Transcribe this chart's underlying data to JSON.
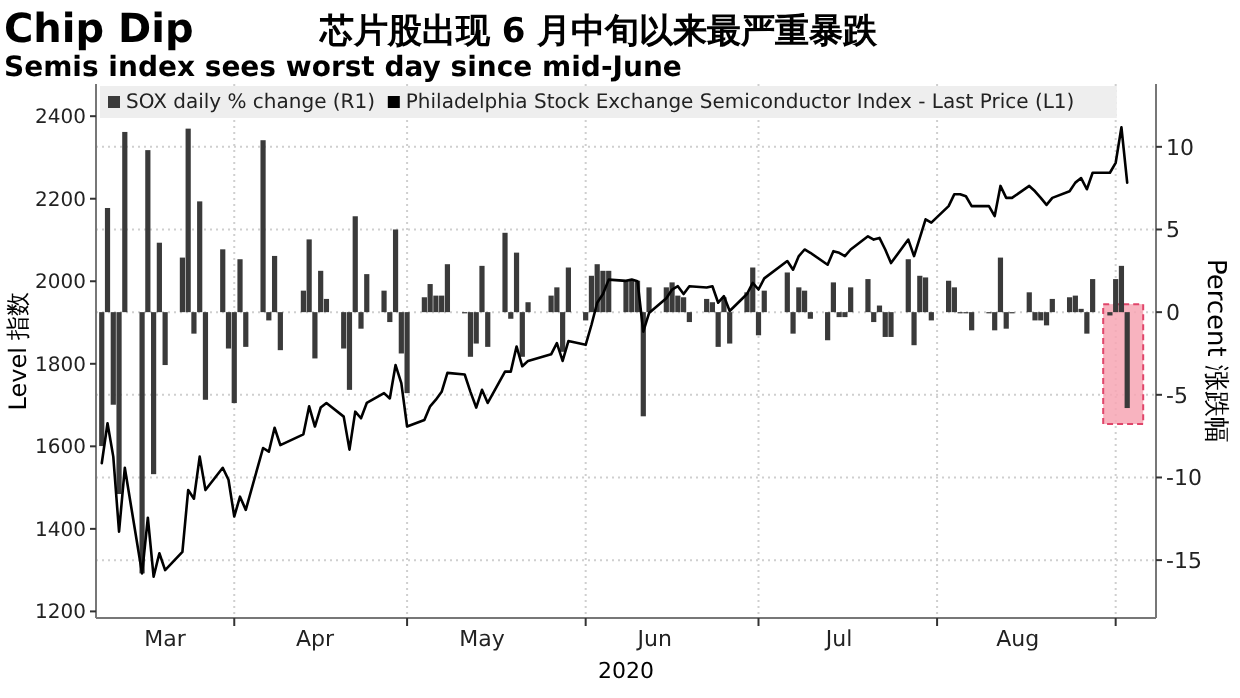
{
  "chart_data": {
    "type": "bar",
    "title": "Chip Dip",
    "subtitle": "Semis index sees worst day since mid-June",
    "annotations": [
      "芯片股出现 6 月中旬以来最严重暴跌"
    ],
    "xlabel": "2020",
    "ylabel": "Level 指数",
    "y2label": "Percent 涨跌幅",
    "x": [
      "2020-03-09",
      "2020-03-10",
      "2020-03-11",
      "2020-03-12",
      "2020-03-13",
      "2020-03-16",
      "2020-03-17",
      "2020-03-18",
      "2020-03-19",
      "2020-03-20",
      "2020-03-23",
      "2020-03-24",
      "2020-03-25",
      "2020-03-26",
      "2020-03-27",
      "2020-03-30",
      "2020-03-31",
      "2020-04-01",
      "2020-04-02",
      "2020-04-03",
      "2020-04-06",
      "2020-04-07",
      "2020-04-08",
      "2020-04-09",
      "2020-04-13",
      "2020-04-14",
      "2020-04-15",
      "2020-04-16",
      "2020-04-17",
      "2020-04-20",
      "2020-04-21",
      "2020-04-22",
      "2020-04-23",
      "2020-04-24",
      "2020-04-27",
      "2020-04-28",
      "2020-04-29",
      "2020-04-30",
      "2020-05-01",
      "2020-05-04",
      "2020-05-05",
      "2020-05-06",
      "2020-05-07",
      "2020-05-08",
      "2020-05-11",
      "2020-05-12",
      "2020-05-13",
      "2020-05-14",
      "2020-05-15",
      "2020-05-18",
      "2020-05-19",
      "2020-05-20",
      "2020-05-21",
      "2020-05-22",
      "2020-05-26",
      "2020-05-27",
      "2020-05-28",
      "2020-05-29",
      "2020-06-01",
      "2020-06-02",
      "2020-06-03",
      "2020-06-04",
      "2020-06-05",
      "2020-06-08",
      "2020-06-09",
      "2020-06-10",
      "2020-06-11",
      "2020-06-12",
      "2020-06-15",
      "2020-06-16",
      "2020-06-17",
      "2020-06-18",
      "2020-06-19",
      "2020-06-22",
      "2020-06-23",
      "2020-06-24",
      "2020-06-25",
      "2020-06-26",
      "2020-06-29",
      "2020-06-30",
      "2020-07-01",
      "2020-07-02",
      "2020-07-06",
      "2020-07-07",
      "2020-07-08",
      "2020-07-09",
      "2020-07-10",
      "2020-07-13",
      "2020-07-14",
      "2020-07-15",
      "2020-07-16",
      "2020-07-17",
      "2020-07-20",
      "2020-07-21",
      "2020-07-22",
      "2020-07-23",
      "2020-07-24",
      "2020-07-27",
      "2020-07-28",
      "2020-07-29",
      "2020-07-30",
      "2020-07-31",
      "2020-08-03",
      "2020-08-04",
      "2020-08-05",
      "2020-08-06",
      "2020-08-07",
      "2020-08-10",
      "2020-08-11",
      "2020-08-12",
      "2020-08-13",
      "2020-08-14",
      "2020-08-17",
      "2020-08-18",
      "2020-08-19",
      "2020-08-20",
      "2020-08-21",
      "2020-08-24",
      "2020-08-25",
      "2020-08-26",
      "2020-08-27",
      "2020-08-28",
      "2020-08-31",
      "2020-09-01",
      "2020-09-02",
      "2020-09-03"
    ],
    "series": [
      {
        "name": "SOX daily % change (R1)",
        "axis": "y2",
        "color": "#3a3a3a",
        "values": [
          -8.1,
          6.3,
          -5.6,
          -11.0,
          10.9,
          -15.8,
          9.8,
          -9.8,
          4.2,
          -3.2,
          3.3,
          11.1,
          -1.3,
          6.7,
          -5.3,
          3.8,
          -2.2,
          -5.5,
          3.2,
          -2.1,
          10.4,
          -0.5,
          3.4,
          -2.3,
          1.3,
          4.4,
          -2.8,
          2.5,
          0.8,
          -2.2,
          -4.7,
          5.8,
          -1.0,
          2.3,
          1.3,
          -0.6,
          5.0,
          -2.5,
          -4.9,
          0.9,
          1.7,
          1.0,
          1.0,
          2.9,
          0,
          -2.7,
          -1.9,
          2.8,
          -2.1,
          4.8,
          -0.4,
          3.6,
          -2.7,
          0.6,
          1.0,
          1.5,
          -2.4,
          2.7,
          -0.5,
          2.2,
          2.9,
          2.5,
          2.5,
          1.9,
          1.9,
          1.9,
          -6.3,
          1.5,
          1.5,
          1.8,
          1.0,
          0.9,
          -0.6,
          0.8,
          0.6,
          -2.1,
          0.9,
          -1.9,
          1.2,
          2.7,
          -1.4,
          1.3,
          2.4,
          -1.3,
          1.5,
          1.3,
          -0.4,
          -1.7,
          1.8,
          -0.3,
          -0.3,
          1.5,
          2.0,
          -0.6,
          0.4,
          -1.5,
          -1.5,
          3.2,
          -2.0,
          2.2,
          2.1,
          -0.5,
          1.9,
          1.5,
          0,
          0,
          -1.1,
          0,
          -1.1,
          3.3,
          -1.0,
          0,
          1.2,
          -0.5,
          -0.5,
          -0.8,
          0.8,
          0.9,
          1.0,
          0.2,
          -1.3,
          2.0,
          -0.2,
          2.0,
          2.8,
          -5.8
        ]
      },
      {
        "name": "Philadelphia Stock Exchange Semiconductor Index - Last Price (L1)",
        "type": "line",
        "color": "#000000",
        "values": [
          1559,
          1656,
          1575,
          1393,
          1548,
          1292,
          1427,
          1284,
          1341,
          1300,
          1344,
          1494,
          1473,
          1575,
          1494,
          1548,
          1519,
          1430,
          1478,
          1446,
          1596,
          1587,
          1645,
          1603,
          1629,
          1697,
          1648,
          1694,
          1705,
          1672,
          1592,
          1684,
          1668,
          1705,
          1729,
          1716,
          1797,
          1753,
          1648,
          1664,
          1697,
          1713,
          1732,
          1778,
          1774,
          1732,
          1694,
          1737,
          1705,
          1781,
          1781,
          1842,
          1794,
          1807,
          1823,
          1850,
          1807,
          1855,
          1846,
          1894,
          1948,
          1969,
          2004,
          2001,
          2004,
          2000,
          1878,
          1923,
          1959,
          1980,
          1988,
          1969,
          1988,
          1985,
          1988,
          1948,
          1964,
          1928,
          1969,
          1996,
          1980,
          2007,
          2049,
          2028,
          2061,
          2077,
          2069,
          2040,
          2073,
          2069,
          2061,
          2077,
          2109,
          2101,
          2105,
          2077,
          2044,
          2101,
          2061,
          2105,
          2150,
          2142,
          2182,
          2211,
          2211,
          2206,
          2182,
          2182,
          2158,
          2231,
          2202,
          2202,
          2231,
          2218,
          2202,
          2185,
          2202,
          2218,
          2239,
          2250,
          2223,
          2263,
          2263,
          2287,
          2373,
          2239
        ]
      }
    ],
    "xlim": [
      "2020-03-08",
      "2020-09-08"
    ],
    "xticks": [
      {
        "value": "2020-03-20",
        "label": "Mar"
      },
      {
        "value": "2020-04-01",
        "label": null
      },
      {
        "value": "2020-04-15",
        "label": "Apr"
      },
      {
        "value": "2020-05-01",
        "label": null
      },
      {
        "value": "2020-05-14",
        "label": "May"
      },
      {
        "value": "2020-06-01",
        "label": null
      },
      {
        "value": "2020-06-13",
        "label": "Jun"
      },
      {
        "value": "2020-07-01",
        "label": null
      },
      {
        "value": "2020-07-15",
        "label": "Jul"
      },
      {
        "value": "2020-08-01",
        "label": null
      },
      {
        "value": "2020-08-15",
        "label": "Aug"
      },
      {
        "value": "2020-09-01",
        "label": null
      }
    ],
    "ylim": [
      1184,
      2478
    ],
    "yticks": [
      1200,
      1400,
      1600,
      1800,
      2000,
      2200,
      2400
    ],
    "y2lim": [
      -18.5,
      13.8
    ],
    "y2ticks": [
      -15,
      -10,
      -5,
      0,
      5,
      10
    ],
    "grid": true,
    "legend": "top left"
  }
}
